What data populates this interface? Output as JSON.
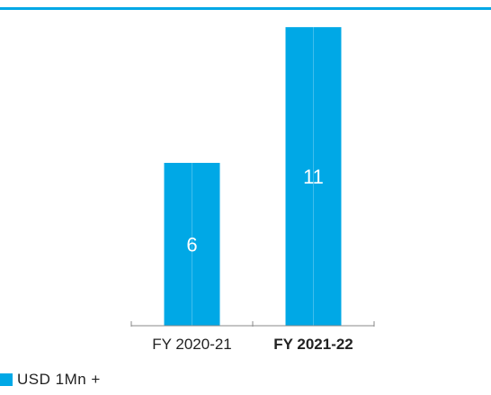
{
  "colors": {
    "accent": "#00a8e6",
    "axis": "#8a8a8a",
    "text": "#222222",
    "bar_label": "#ffffff"
  },
  "legend": {
    "label": "USD 1Mn +"
  },
  "chart_data": {
    "type": "bar",
    "categories": [
      "FY 2020-21",
      "FY 2021-22"
    ],
    "series": [
      {
        "name": "USD 1Mn +",
        "values": [
          6,
          11
        ]
      }
    ],
    "category_bold": [
      false,
      true
    ],
    "data_labels": true,
    "ylim": [
      0,
      12
    ],
    "grid": false,
    "legend_position": "bottom-left"
  }
}
